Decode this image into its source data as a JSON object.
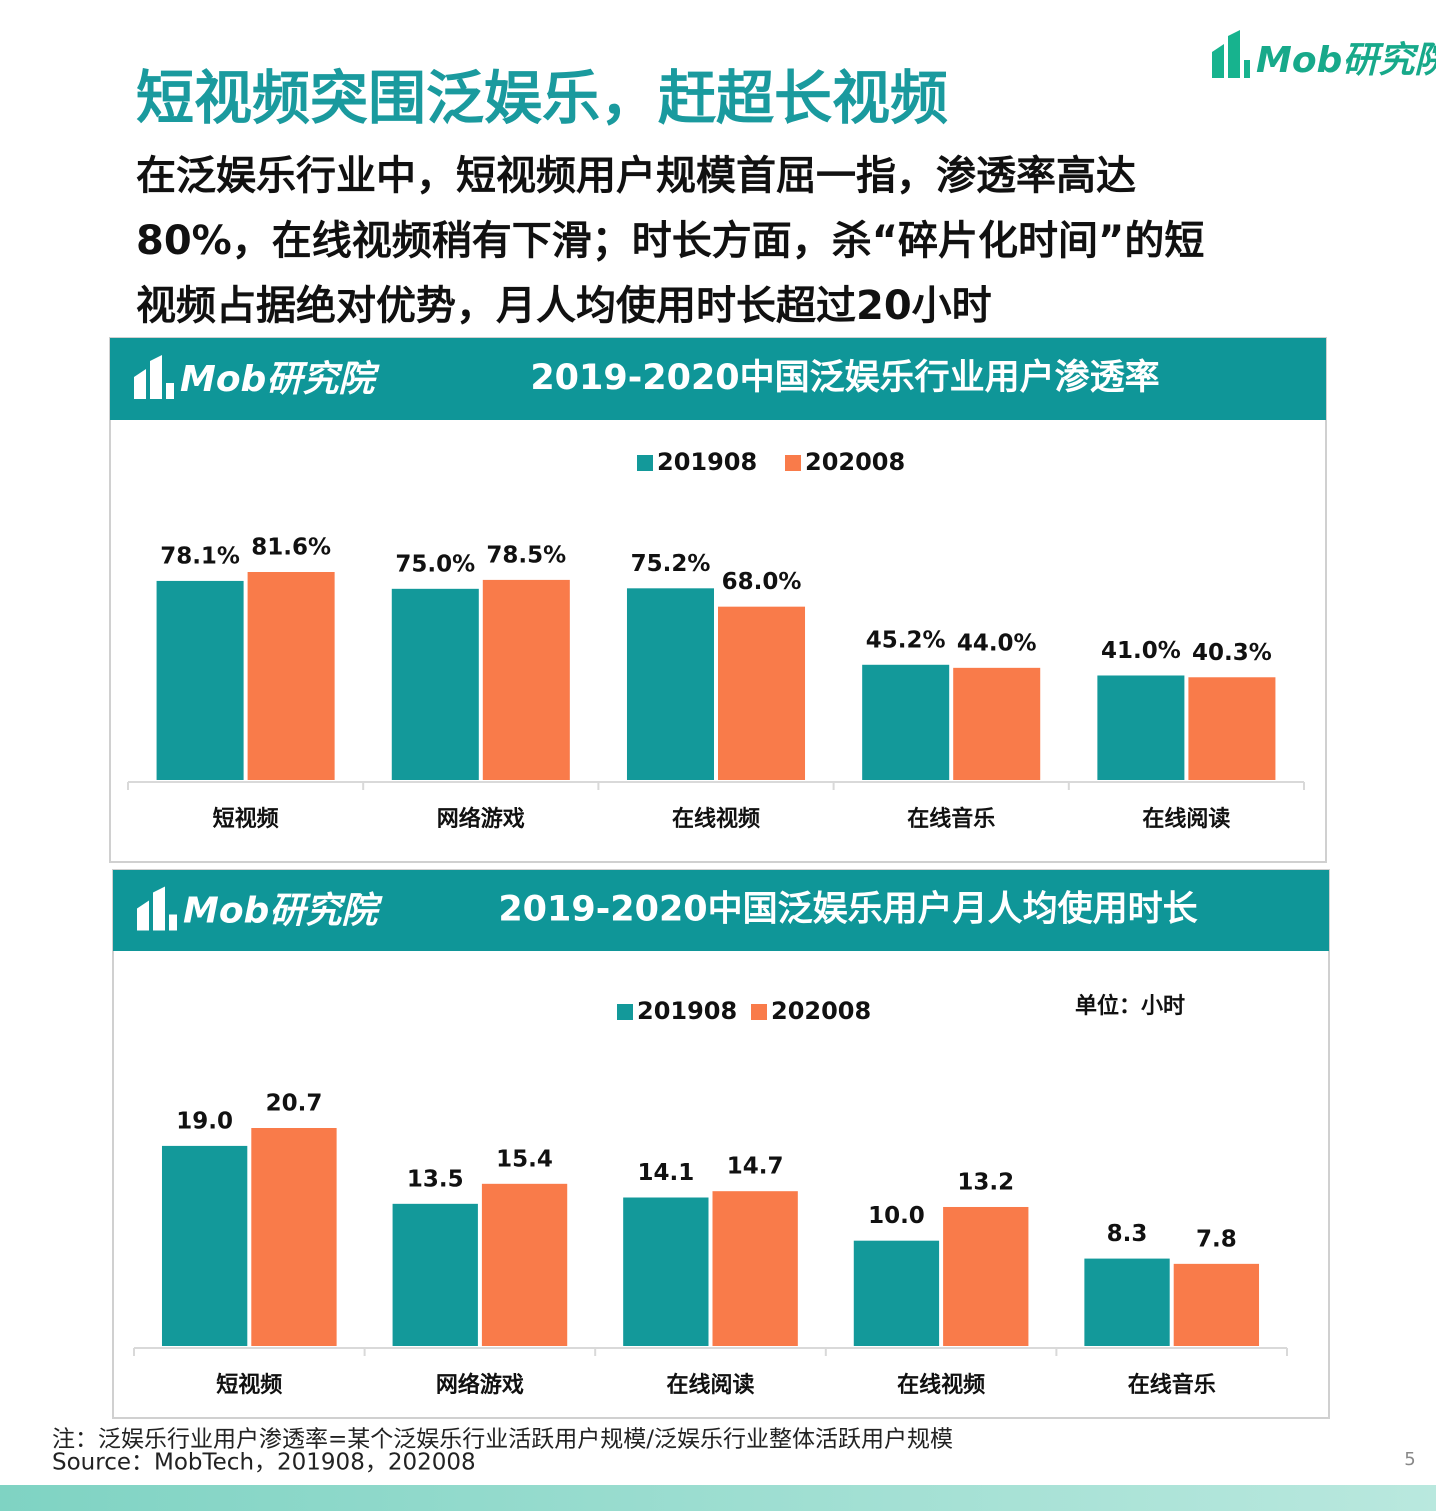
{
  "slide": {
    "logo": "Mob研究院",
    "title": "短视频突围泛娱乐，赶超长视频",
    "subtitle_lines": [
      "在泛娱乐行业中，短视频用户规模首屈一指，渗透率高达",
      "80%，在线视频稍有下滑；时长方面，杀“碎片化时间”的短",
      "视频占据绝对优势，月人均使用时长超过20小时"
    ],
    "note": "注：泛娱乐行业用户渗透率=某个泛娱乐行业活跃用户规模/泛娱乐行业整体活跃用户规模",
    "source": "Source：MobTech，201908，202008",
    "page": 5
  },
  "chart_data": [
    {
      "type": "bar",
      "logo": "Mob研究院",
      "title": "2019-2020中国泛娱乐行业用户渗透率",
      "categories": [
        "短视频",
        "网络游戏",
        "在线视频",
        "在线音乐",
        "在线阅读"
      ],
      "series": [
        {
          "name": "201908",
          "color": "#13999a",
          "values": [
            78.1,
            75.0,
            75.2,
            45.2,
            41.0
          ],
          "value_labels": [
            "78.1%",
            "75.0%",
            "75.2%",
            "45.2%",
            "41.0%"
          ]
        },
        {
          "name": "202008",
          "color": "#f97b4a",
          "values": [
            81.6,
            78.5,
            68.0,
            44.0,
            40.3
          ],
          "value_labels": [
            "81.6%",
            "78.5%",
            "68.0%",
            "44.0%",
            "40.3%"
          ]
        }
      ]
    },
    {
      "type": "bar",
      "logo": "Mob研究院",
      "title": "2019-2020中国泛娱乐用户月人均使用时长",
      "unit_label": "单位：小时",
      "categories": [
        "短视频",
        "网络游戏",
        "在线阅读",
        "在线视频",
        "在线音乐"
      ],
      "series": [
        {
          "name": "201908",
          "color": "#13999a",
          "values": [
            19.0,
            13.5,
            14.1,
            10.0,
            8.3
          ],
          "value_labels": [
            "19.0",
            "13.5",
            "14.1",
            "10.0",
            "8.3"
          ]
        },
        {
          "name": "202008",
          "color": "#f97b4a",
          "values": [
            20.7,
            15.4,
            14.7,
            13.2,
            7.8
          ],
          "value_labels": [
            "20.7",
            "15.4",
            "14.7",
            "13.2",
            "7.8"
          ]
        }
      ]
    }
  ]
}
